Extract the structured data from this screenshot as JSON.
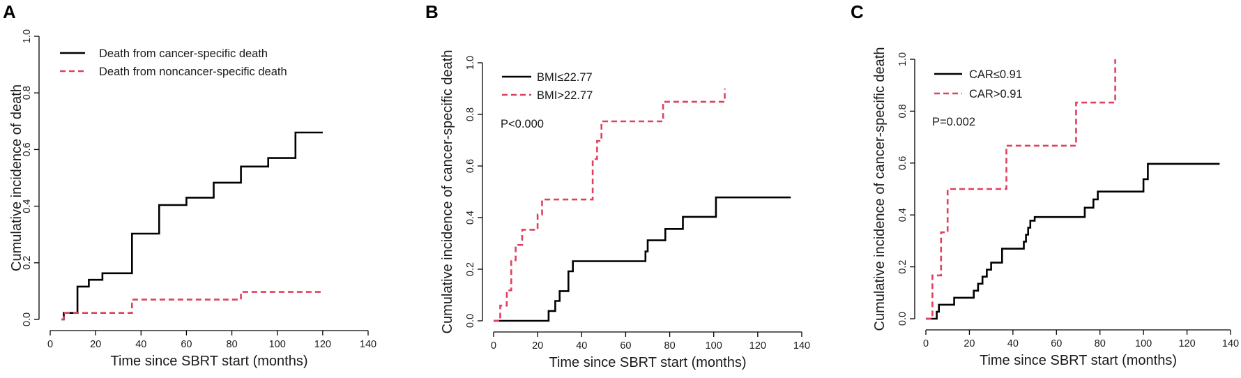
{
  "chart_data": [
    {
      "panel_letter": "A",
      "type": "line",
      "xlabel": "Time since SBRT start (months)",
      "ylabel": "Cumulative incidence of death",
      "xlim": [
        0,
        140
      ],
      "ylim": [
        0,
        1
      ],
      "x_ticks": [
        "0",
        "20",
        "40",
        "60",
        "80",
        "100",
        "120",
        "140"
      ],
      "y_ticks": [
        "0.0",
        "0.2",
        "0.4",
        "0.6",
        "0.8",
        "1.0"
      ],
      "legend_position": "top-left",
      "series": [
        {
          "name": "Death from cancer-specific death",
          "color": "#000000",
          "style": "solid",
          "points": [
            [
              5,
              0
            ],
            [
              6,
              0
            ],
            [
              6,
              0.023
            ],
            [
              12,
              0.023
            ],
            [
              12,
              0.116
            ],
            [
              17,
              0.116
            ],
            [
              17,
              0.14
            ],
            [
              23,
              0.14
            ],
            [
              23,
              0.163
            ],
            [
              36,
              0.163
            ],
            [
              36,
              0.303
            ],
            [
              48,
              0.303
            ],
            [
              48,
              0.404
            ],
            [
              60,
              0.404
            ],
            [
              60,
              0.43
            ],
            [
              72,
              0.43
            ],
            [
              72,
              0.483
            ],
            [
              84,
              0.483
            ],
            [
              84,
              0.54
            ],
            [
              96,
              0.54
            ],
            [
              96,
              0.57
            ],
            [
              108,
              0.57
            ],
            [
              108,
              0.66
            ],
            [
              120,
              0.66
            ]
          ]
        },
        {
          "name": "Death from noncancer-specific death",
          "color": "#e0405f",
          "style": "dashed",
          "points": [
            [
              5,
              0
            ],
            [
              6,
              0
            ],
            [
              6,
              0.023
            ],
            [
              36,
              0.023
            ],
            [
              36,
              0.07
            ],
            [
              84,
              0.07
            ],
            [
              84,
              0.097
            ],
            [
              120,
              0.097
            ]
          ]
        }
      ]
    },
    {
      "panel_letter": "B",
      "type": "line",
      "xlabel": "Time since SBRT start (months)",
      "ylabel": "Cumulative incidence of cancer-specific death",
      "xlim": [
        0,
        140
      ],
      "ylim": [
        0,
        1
      ],
      "x_ticks": [
        "0",
        "20",
        "40",
        "60",
        "80",
        "100",
        "120",
        "140"
      ],
      "y_ticks": [
        "0.0",
        "0.2",
        "0.4",
        "0.6",
        "0.8",
        "1.0"
      ],
      "legend_position": "top-left",
      "annotation": "P<0.000",
      "series": [
        {
          "name": "BMI≤22.77",
          "color": "#000000",
          "style": "solid",
          "points": [
            [
              0,
              0
            ],
            [
              25,
              0
            ],
            [
              25,
              0.038
            ],
            [
              28,
              0.038
            ],
            [
              28,
              0.077
            ],
            [
              30,
              0.077
            ],
            [
              30,
              0.115
            ],
            [
              34,
              0.115
            ],
            [
              34,
              0.192
            ],
            [
              36,
              0.192
            ],
            [
              36,
              0.231
            ],
            [
              69,
              0.231
            ],
            [
              69,
              0.269
            ],
            [
              70,
              0.269
            ],
            [
              70,
              0.312
            ],
            [
              78,
              0.312
            ],
            [
              78,
              0.356
            ],
            [
              86,
              0.356
            ],
            [
              86,
              0.403
            ],
            [
              101,
              0.403
            ],
            [
              101,
              0.478
            ],
            [
              135,
              0.478
            ]
          ]
        },
        {
          "name": "BMI>22.77",
          "color": "#e0405f",
          "style": "dashed",
          "points": [
            [
              0,
              0
            ],
            [
              3,
              0
            ],
            [
              3,
              0.059
            ],
            [
              6,
              0.059
            ],
            [
              6,
              0.118
            ],
            [
              8,
              0.118
            ],
            [
              8,
              0.235
            ],
            [
              10,
              0.235
            ],
            [
              10,
              0.294
            ],
            [
              13,
              0.294
            ],
            [
              13,
              0.353
            ],
            [
              20,
              0.353
            ],
            [
              20,
              0.412
            ],
            [
              22,
              0.412
            ],
            [
              22,
              0.47
            ],
            [
              45,
              0.47
            ],
            [
              45,
              0.627
            ],
            [
              47,
              0.627
            ],
            [
              47,
              0.697
            ],
            [
              49,
              0.697
            ],
            [
              49,
              0.773
            ],
            [
              77,
              0.773
            ],
            [
              77,
              0.849
            ],
            [
              105,
              0.849
            ],
            [
              105,
              0.9
            ]
          ]
        }
      ]
    },
    {
      "panel_letter": "C",
      "type": "line",
      "xlabel": "Time since SBRT start (months)",
      "ylabel": "Cumulative incidence of cancer-specific death",
      "xlim": [
        0,
        140
      ],
      "ylim": [
        0,
        1
      ],
      "x_ticks": [
        "0",
        "20",
        "40",
        "60",
        "80",
        "100",
        "120",
        "140"
      ],
      "y_ticks": [
        "0.0",
        "0.2",
        "0.4",
        "0.6",
        "0.8",
        "1.0"
      ],
      "legend_position": "top-left",
      "annotation": "P=0.002",
      "series": [
        {
          "name": "CAR≤0.91",
          "color": "#000000",
          "style": "solid",
          "points": [
            [
              0,
              0
            ],
            [
              5,
              0
            ],
            [
              5,
              0.027
            ],
            [
              6,
              0.027
            ],
            [
              6,
              0.054
            ],
            [
              13,
              0.054
            ],
            [
              13,
              0.081
            ],
            [
              22,
              0.081
            ],
            [
              22,
              0.108
            ],
            [
              24,
              0.108
            ],
            [
              24,
              0.135
            ],
            [
              26,
              0.135
            ],
            [
              26,
              0.162
            ],
            [
              28,
              0.162
            ],
            [
              28,
              0.189
            ],
            [
              30,
              0.189
            ],
            [
              30,
              0.216
            ],
            [
              35,
              0.216
            ],
            [
              35,
              0.27
            ],
            [
              45,
              0.27
            ],
            [
              45,
              0.297
            ],
            [
              46,
              0.297
            ],
            [
              46,
              0.324
            ],
            [
              47,
              0.324
            ],
            [
              47,
              0.351
            ],
            [
              48,
              0.351
            ],
            [
              48,
              0.378
            ],
            [
              50,
              0.378
            ],
            [
              50,
              0.392
            ],
            [
              73,
              0.392
            ],
            [
              73,
              0.428
            ],
            [
              77,
              0.428
            ],
            [
              77,
              0.46
            ],
            [
              79,
              0.46
            ],
            [
              79,
              0.49
            ],
            [
              100,
              0.49
            ],
            [
              100,
              0.538
            ],
            [
              102,
              0.538
            ],
            [
              102,
              0.597
            ],
            [
              135,
              0.597
            ]
          ]
        },
        {
          "name": "CAR>0.91",
          "color": "#e0405f",
          "style": "dashed",
          "points": [
            [
              0,
              0
            ],
            [
              3,
              0
            ],
            [
              3,
              0.167
            ],
            [
              7,
              0.167
            ],
            [
              7,
              0.333
            ],
            [
              10,
              0.333
            ],
            [
              10,
              0.5
            ],
            [
              37,
              0.5
            ],
            [
              37,
              0.667
            ],
            [
              69,
              0.667
            ],
            [
              69,
              0.833
            ],
            [
              87,
              0.833
            ],
            [
              87,
              1.0
            ]
          ]
        }
      ]
    }
  ]
}
